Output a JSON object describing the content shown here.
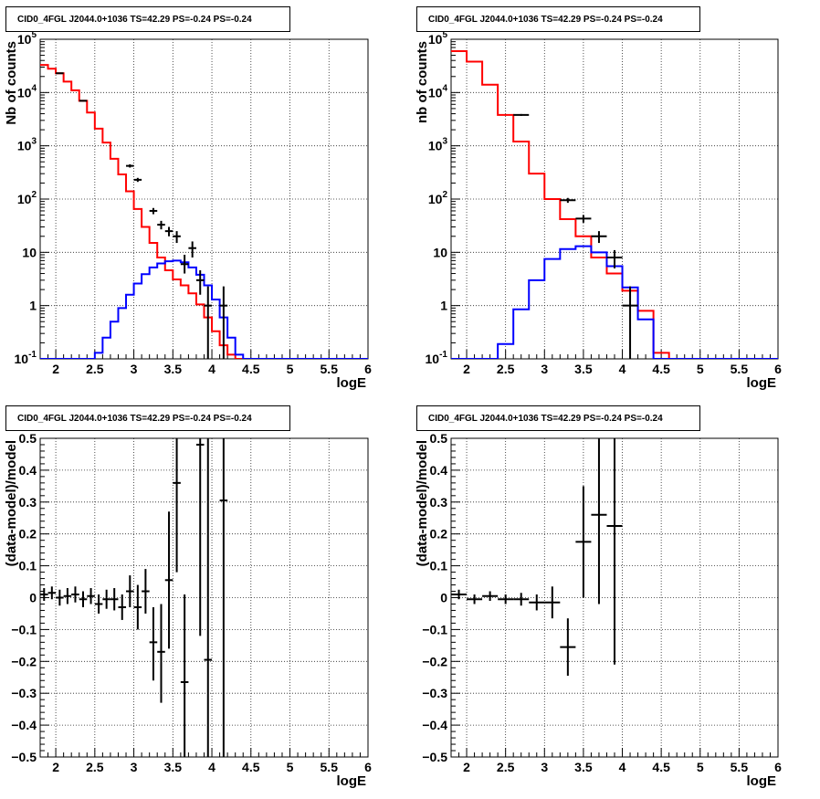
{
  "colors": {
    "model_total": "#ff0000",
    "model_source": "#0000ff",
    "data": "#000000",
    "grid": "#000000"
  },
  "chart_data": [
    {
      "id": "p1",
      "type": "histogram",
      "title": "CID0_4FGL J2044.0+1036 TS=42.29 PS=-0.24 PS=-0.24",
      "xlabel": "logE",
      "ylabel": "Nb of counts",
      "xlim": [
        1.8,
        6.0
      ],
      "ylim": [
        0.1,
        100000
      ],
      "ylog": true,
      "grid": true,
      "x_ticks": [
        "2",
        "2.5",
        "3",
        "3.5",
        "4",
        "4.5",
        "5",
        "5.5",
        "6"
      ],
      "y_ticks": [
        "10^-1",
        "1",
        "10",
        "10^2",
        "10^3",
        "10^4",
        "10^5"
      ],
      "bin_edges": [
        1.8,
        1.9,
        2.0,
        2.1,
        2.2,
        2.3,
        2.4,
        2.5,
        2.6,
        2.7,
        2.8,
        2.9,
        3.0,
        3.1,
        3.2,
        3.3,
        3.4,
        3.5,
        3.6,
        3.7,
        3.8,
        3.9,
        4.0,
        4.1,
        4.2,
        4.3,
        4.4,
        4.5,
        4.6,
        4.7,
        4.8,
        4.9,
        5.0,
        5.1,
        5.2,
        5.3,
        5.4,
        5.5,
        5.6,
        5.7,
        5.8,
        5.9,
        6.0
      ],
      "series": [
        {
          "kind": "total_model",
          "values": [
            33000,
            28000,
            23000,
            16000,
            11000,
            7000,
            4200,
            2100,
            1150,
            570,
            290,
            140,
            65,
            30,
            15,
            8,
            4.6,
            3.1,
            2.4,
            1.7,
            1.05,
            0.6,
            0.33,
            0.18,
            0.12,
            0.1,
            0.1,
            0.1,
            0.1,
            0.1,
            0.1,
            0.1,
            0.1,
            0.1,
            0.1,
            0.1,
            0.1,
            0.1,
            0.1,
            0.1,
            0.1,
            0.1
          ]
        },
        {
          "kind": "source_model",
          "values": [
            0.1,
            0.1,
            0.1,
            0.1,
            0.1,
            0.1,
            0.1,
            0.13,
            0.25,
            0.5,
            0.9,
            1.6,
            2.6,
            3.9,
            5.2,
            6.2,
            6.8,
            7.0,
            6.5,
            5.2,
            3.8,
            2.4,
            1.3,
            0.6,
            0.25,
            0.12,
            0.1,
            0.1,
            0.1,
            0.1,
            0.1,
            0.1,
            0.1,
            0.1,
            0.1,
            0.1,
            0.1,
            0.1,
            0.1,
            0.1,
            0.1,
            0.1
          ]
        }
      ],
      "points": [
        {
          "x": 2.05,
          "y": 23000,
          "ylo": 22500,
          "yhi": 23500,
          "xerr": 0.05
        },
        {
          "x": 2.35,
          "y": 7000,
          "ylo": 6800,
          "yhi": 7200,
          "xerr": 0.05
        },
        {
          "x": 2.95,
          "y": 420,
          "ylo": 390,
          "yhi": 450,
          "xerr": 0.05
        },
        {
          "x": 3.05,
          "y": 230,
          "ylo": 210,
          "yhi": 250,
          "xerr": 0.05
        },
        {
          "x": 3.25,
          "y": 60,
          "ylo": 52,
          "yhi": 68,
          "xerr": 0.05
        },
        {
          "x": 3.35,
          "y": 33,
          "ylo": 27,
          "yhi": 39,
          "xerr": 0.05
        },
        {
          "x": 3.45,
          "y": 25,
          "ylo": 20,
          "yhi": 30,
          "xerr": 0.05
        },
        {
          "x": 3.55,
          "y": 20,
          "ylo": 15,
          "yhi": 25,
          "xerr": 0.05
        },
        {
          "x": 3.65,
          "y": 6,
          "ylo": 4,
          "yhi": 9,
          "xerr": 0.05
        },
        {
          "x": 3.75,
          "y": 12,
          "ylo": 8,
          "yhi": 16,
          "xerr": 0.05
        },
        {
          "x": 3.85,
          "y": 3,
          "ylo": 1.6,
          "yhi": 4.6,
          "xerr": 0.05
        },
        {
          "x": 3.95,
          "y": 1,
          "ylo": 0.1,
          "yhi": 2.3,
          "xerr": 0.05
        },
        {
          "x": 4.15,
          "y": 1,
          "ylo": 0.1,
          "yhi": 2.3,
          "xerr": 0.05
        }
      ]
    },
    {
      "id": "p2",
      "type": "histogram",
      "title": "CID0_4FGL J2044.0+1036 TS=42.29 PS=-0.24 PS=-0.24",
      "xlabel": "logE",
      "ylabel": "nb of counts",
      "xlim": [
        1.8,
        6.0
      ],
      "ylim": [
        0.1,
        100000
      ],
      "ylog": true,
      "grid": true,
      "x_ticks": [
        "2",
        "2.5",
        "3",
        "3.5",
        "4",
        "4.5",
        "5",
        "5.5",
        "6"
      ],
      "y_ticks": [
        "10^-1",
        "1",
        "10",
        "10^2",
        "10^3",
        "10^4",
        "10^5"
      ],
      "bin_edges": [
        1.8,
        2.0,
        2.2,
        2.4,
        2.6,
        2.8,
        3.0,
        3.2,
        3.4,
        3.6,
        3.8,
        4.0,
        4.2,
        4.4,
        4.6,
        4.8,
        5.0,
        5.2,
        5.4,
        5.6,
        5.8,
        6.0
      ],
      "series": [
        {
          "kind": "total_model",
          "values": [
            60000,
            38000,
            14000,
            3800,
            1200,
            300,
            100,
            42,
            20,
            8,
            4,
            1.9,
            0.8,
            0.13,
            0.1,
            0.1,
            0.1,
            0.1,
            0.1,
            0.1,
            0.1
          ]
        },
        {
          "kind": "source_model",
          "values": [
            0.1,
            0.1,
            0.1,
            0.19,
            0.85,
            3.0,
            7.5,
            11.5,
            13.0,
            10.0,
            5.5,
            2.2,
            0.55,
            0.1,
            0.1,
            0.1,
            0.1,
            0.1,
            0.1,
            0.1,
            0.1
          ]
        }
      ],
      "points": [
        {
          "x": 2.7,
          "y": 3800,
          "ylo": 3650,
          "yhi": 3950,
          "xerr": 0.1
        },
        {
          "x": 3.3,
          "y": 95,
          "ylo": 85,
          "yhi": 105,
          "xerr": 0.1
        },
        {
          "x": 3.5,
          "y": 43,
          "ylo": 36,
          "yhi": 50,
          "xerr": 0.1
        },
        {
          "x": 3.7,
          "y": 20,
          "ylo": 15,
          "yhi": 25,
          "xerr": 0.1
        },
        {
          "x": 3.9,
          "y": 8,
          "ylo": 5,
          "yhi": 11,
          "xerr": 0.1
        },
        {
          "x": 4.1,
          "y": 1,
          "ylo": 0.1,
          "yhi": 2.3,
          "xerr": 0.1
        }
      ]
    },
    {
      "id": "p3",
      "type": "scatter",
      "title": "CID0_4FGL J2044.0+1036 TS=42.29 PS=-0.24 PS=-0.24",
      "xlabel": "logE",
      "ylabel": "(data-model)/model",
      "xlim": [
        1.8,
        6.0
      ],
      "ylim": [
        -0.5,
        0.5
      ],
      "ylog": false,
      "grid": true,
      "x_ticks": [
        "2",
        "2.5",
        "3",
        "3.5",
        "4",
        "4.5",
        "5",
        "5.5",
        "6"
      ],
      "y_ticks": [
        "-0.5",
        "-0.4",
        "-0.3",
        "-0.2",
        "-0.1",
        "0",
        "0.1",
        "0.2",
        "0.3",
        "0.4",
        "0.5"
      ],
      "points": [
        {
          "x": 1.85,
          "y": 0.01,
          "ylo": -0.01,
          "yhi": 0.03,
          "xerr": 0.05
        },
        {
          "x": 1.95,
          "y": 0.015,
          "ylo": -0.005,
          "yhi": 0.035,
          "xerr": 0.05
        },
        {
          "x": 2.05,
          "y": 0.0,
          "ylo": -0.025,
          "yhi": 0.025,
          "xerr": 0.05
        },
        {
          "x": 2.15,
          "y": 0.005,
          "ylo": -0.02,
          "yhi": 0.03,
          "xerr": 0.05
        },
        {
          "x": 2.25,
          "y": 0.01,
          "ylo": -0.015,
          "yhi": 0.035,
          "xerr": 0.05
        },
        {
          "x": 2.35,
          "y": -0.005,
          "ylo": -0.03,
          "yhi": 0.02,
          "xerr": 0.05
        },
        {
          "x": 2.45,
          "y": 0.005,
          "ylo": -0.02,
          "yhi": 0.03,
          "xerr": 0.05
        },
        {
          "x": 2.55,
          "y": -0.02,
          "ylo": -0.05,
          "yhi": 0.01,
          "xerr": 0.05
        },
        {
          "x": 2.65,
          "y": -0.005,
          "ylo": -0.035,
          "yhi": 0.025,
          "xerr": 0.05
        },
        {
          "x": 2.75,
          "y": -0.005,
          "ylo": -0.04,
          "yhi": 0.03,
          "xerr": 0.05
        },
        {
          "x": 2.85,
          "y": -0.03,
          "ylo": -0.07,
          "yhi": 0.01,
          "xerr": 0.05
        },
        {
          "x": 2.95,
          "y": 0.02,
          "ylo": -0.03,
          "yhi": 0.07,
          "xerr": 0.05
        },
        {
          "x": 3.05,
          "y": -0.03,
          "ylo": -0.1,
          "yhi": 0.04,
          "xerr": 0.05
        },
        {
          "x": 3.15,
          "y": 0.02,
          "ylo": -0.05,
          "yhi": 0.09,
          "xerr": 0.05
        },
        {
          "x": 3.25,
          "y": -0.14,
          "ylo": -0.26,
          "yhi": -0.03,
          "xerr": 0.05
        },
        {
          "x": 3.35,
          "y": -0.17,
          "ylo": -0.33,
          "yhi": -0.02,
          "xerr": 0.05
        },
        {
          "x": 3.45,
          "y": 0.055,
          "ylo": -0.16,
          "yhi": 0.27,
          "xerr": 0.05
        },
        {
          "x": 3.55,
          "y": 0.36,
          "ylo": 0.08,
          "yhi": 0.5,
          "xerr": 0.05
        },
        {
          "x": 3.65,
          "y": -0.265,
          "ylo": -0.5,
          "yhi": 0.01,
          "xerr": 0.05
        },
        {
          "x": 3.85,
          "y": 0.48,
          "ylo": -0.12,
          "yhi": 0.5,
          "xerr": 0.05
        },
        {
          "x": 3.95,
          "y": -0.195,
          "ylo": -0.5,
          "yhi": 0.5,
          "xerr": 0.05
        },
        {
          "x": 4.15,
          "y": 0.305,
          "ylo": -0.5,
          "yhi": 0.5,
          "xerr": 0.05
        }
      ]
    },
    {
      "id": "p4",
      "type": "scatter",
      "title": "CID0_4FGL J2044.0+1036 TS=42.29 PS=-0.24 PS=-0.24",
      "xlabel": "logE",
      "ylabel": "(data-model)/model",
      "xlim": [
        1.8,
        6.0
      ],
      "ylim": [
        -0.5,
        0.5
      ],
      "ylog": false,
      "grid": true,
      "x_ticks": [
        "2",
        "2.5",
        "3",
        "3.5",
        "4",
        "4.5",
        "5",
        "5.5",
        "6"
      ],
      "y_ticks": [
        "-0.5",
        "-0.4",
        "-0.3",
        "-0.2",
        "-0.1",
        "0",
        "0.1",
        "0.2",
        "0.3",
        "0.4",
        "0.5"
      ],
      "points": [
        {
          "x": 1.9,
          "y": 0.01,
          "ylo": -0.005,
          "yhi": 0.025,
          "xerr": 0.1
        },
        {
          "x": 2.1,
          "y": -0.005,
          "ylo": -0.02,
          "yhi": 0.01,
          "xerr": 0.1
        },
        {
          "x": 2.3,
          "y": 0.005,
          "ylo": -0.01,
          "yhi": 0.02,
          "xerr": 0.1
        },
        {
          "x": 2.5,
          "y": -0.005,
          "ylo": -0.02,
          "yhi": 0.01,
          "xerr": 0.1
        },
        {
          "x": 2.7,
          "y": -0.005,
          "ylo": -0.025,
          "yhi": 0.015,
          "xerr": 0.1
        },
        {
          "x": 2.9,
          "y": -0.015,
          "ylo": -0.04,
          "yhi": 0.01,
          "xerr": 0.1
        },
        {
          "x": 3.1,
          "y": -0.015,
          "ylo": -0.065,
          "yhi": 0.035,
          "xerr": 0.1
        },
        {
          "x": 3.3,
          "y": -0.155,
          "ylo": -0.245,
          "yhi": -0.065,
          "xerr": 0.1
        },
        {
          "x": 3.5,
          "y": 0.175,
          "ylo": 0.0,
          "yhi": 0.35,
          "xerr": 0.1
        },
        {
          "x": 3.7,
          "y": 0.26,
          "ylo": -0.02,
          "yhi": 0.5,
          "xerr": 0.1
        },
        {
          "x": 3.9,
          "y": 0.225,
          "ylo": -0.21,
          "yhi": 0.5,
          "xerr": 0.1
        }
      ]
    }
  ]
}
